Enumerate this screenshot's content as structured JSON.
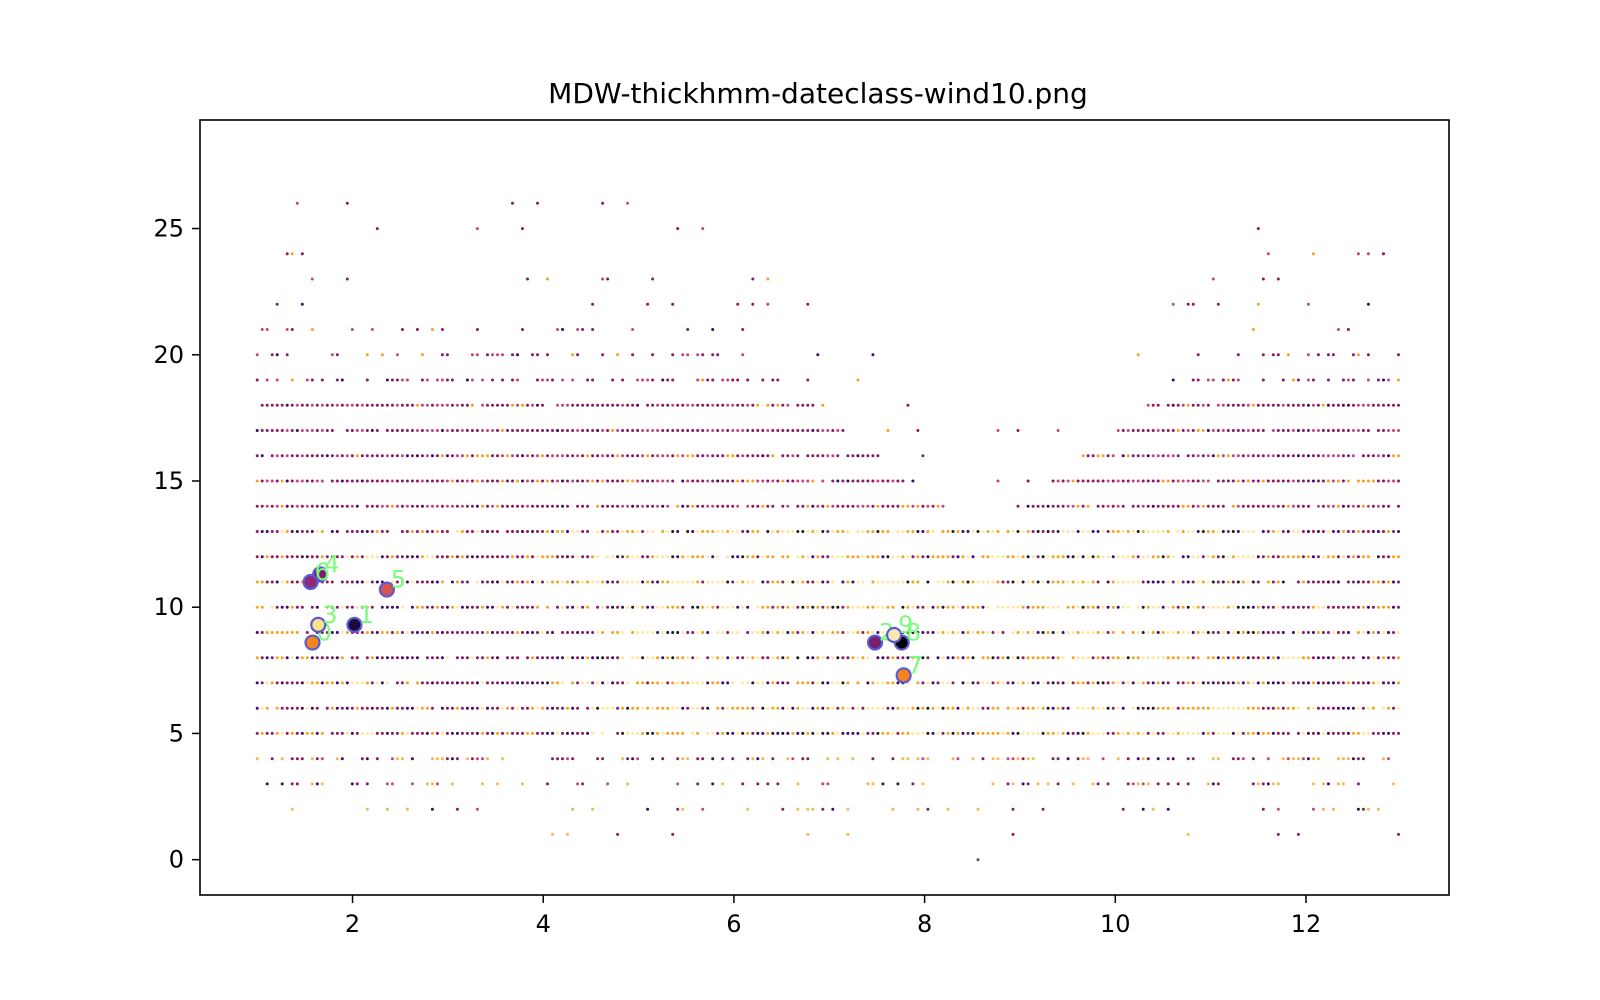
{
  "chart_data": {
    "type": "scatter",
    "title": "MDW-thickhmm-dateclass-wind10.png",
    "xlabel": "",
    "ylabel": "",
    "xlim": [
      0.4,
      13.5
    ],
    "ylim": [
      -1.4,
      29.3
    ],
    "xticks": [
      2,
      4,
      6,
      8,
      10,
      12
    ],
    "yticks": [
      0,
      5,
      10,
      15,
      20,
      25
    ],
    "grid": false,
    "legend": "none",
    "x_range": [
      1,
      13
    ],
    "y_levels": [
      1,
      2,
      3,
      4,
      5,
      6,
      7,
      8,
      9,
      10,
      11,
      12,
      13,
      14,
      15,
      16,
      17,
      18,
      19,
      20,
      21,
      22,
      23,
      24,
      25,
      26,
      27,
      28
    ],
    "point_colors": [
      "#8b1a5e",
      "#c4457a",
      "#f6a21c",
      "#fde79b",
      "#3b0a6b",
      "#1a1a1a",
      "#ffb347"
    ],
    "centroids": [
      {
        "label": "0",
        "x": 1.58,
        "y": 8.6,
        "color": "#f58518"
      },
      {
        "label": "1",
        "x": 2.02,
        "y": 9.3,
        "color": "#1b0b3b"
      },
      {
        "label": "2",
        "x": 7.48,
        "y": 8.6,
        "color": "#7a1f6e"
      },
      {
        "label": "3",
        "x": 1.64,
        "y": 9.3,
        "color": "#fce38a"
      },
      {
        "label": "4",
        "x": 1.66,
        "y": 11.3,
        "color": "#7a1f6e"
      },
      {
        "label": "5",
        "x": 2.36,
        "y": 10.7,
        "color": "#d9534f"
      },
      {
        "label": "6",
        "x": 1.56,
        "y": 11.0,
        "color": "#8b2a7a"
      },
      {
        "label": "7",
        "x": 7.78,
        "y": 7.3,
        "color": "#f58518"
      },
      {
        "label": "8",
        "x": 7.76,
        "y": 8.6,
        "color": "#000000"
      },
      {
        "label": "9",
        "x": 7.68,
        "y": 8.9,
        "color": "#fde9b0"
      }
    ]
  }
}
